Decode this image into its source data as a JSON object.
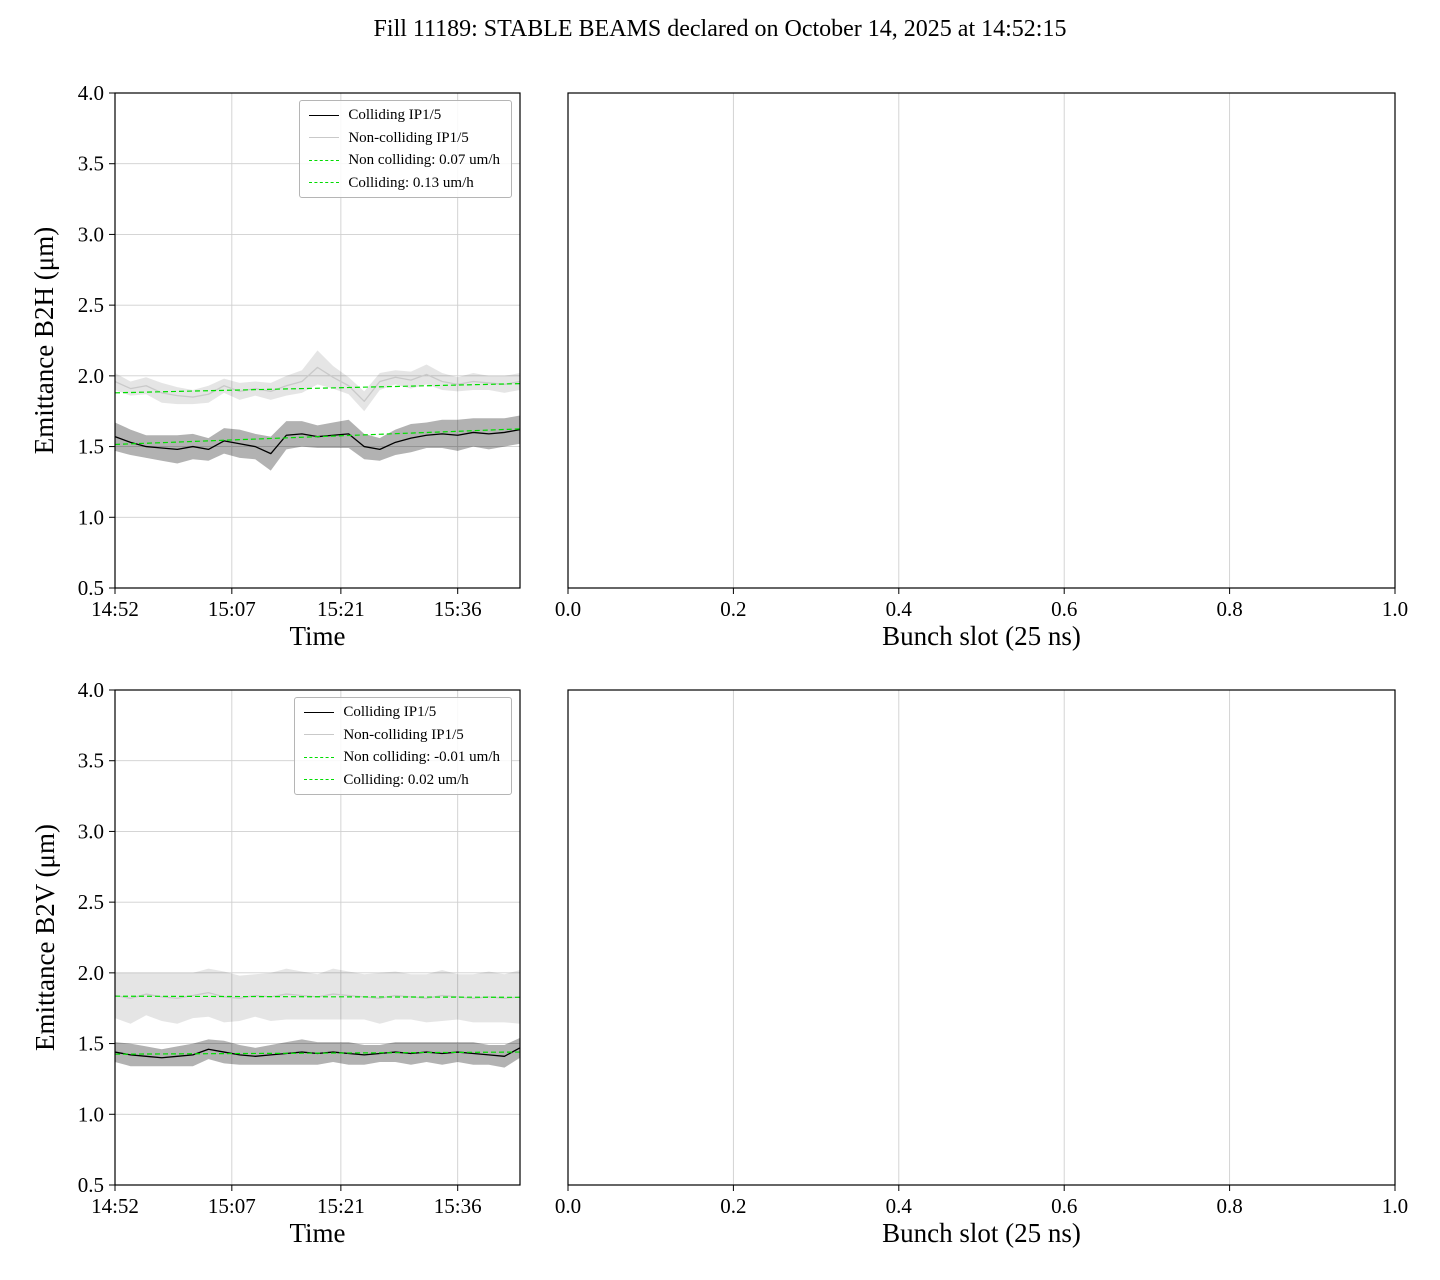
{
  "title": "Fill 11189: STABLE BEAMS declared on October 14, 2025 at 14:52:15",
  "chart_data": [
    {
      "id": "emittance-b2h",
      "type": "line",
      "xlabel": "Time",
      "ylabel": "Emittance B2H (μm)",
      "ylim": [
        0.5,
        4.0
      ],
      "x_domain": [
        0,
        52
      ],
      "grid": true,
      "legend_position": "upper right",
      "yticks": {
        "labels": [
          "0.5",
          "1.0",
          "1.5",
          "2.0",
          "2.5",
          "3.0",
          "3.5",
          "4.0"
        ],
        "values": [
          0.5,
          1.0,
          1.5,
          2.0,
          2.5,
          3.0,
          3.5,
          4.0
        ]
      },
      "xticks": {
        "labels": [
          "14:52",
          "15:07",
          "15:21",
          "15:36"
        ],
        "values": [
          0,
          15,
          29,
          44
        ]
      },
      "x": [
        0,
        2,
        4,
        6,
        8,
        10,
        12,
        14,
        16,
        18,
        20,
        22,
        24,
        26,
        28,
        30,
        32,
        34,
        36,
        38,
        40,
        42,
        44,
        46,
        48,
        50,
        52
      ],
      "series": [
        {
          "label": "Colliding IP1/5",
          "color": "#000000",
          "style": "solid",
          "band_color": "rgba(0,0,0,0.30)",
          "values": [
            1.57,
            1.53,
            1.5,
            1.49,
            1.48,
            1.5,
            1.48,
            1.54,
            1.52,
            1.5,
            1.45,
            1.58,
            1.59,
            1.57,
            1.58,
            1.59,
            1.5,
            1.48,
            1.53,
            1.56,
            1.58,
            1.59,
            1.58,
            1.6,
            1.59,
            1.6,
            1.62
          ],
          "band": [
            0.1,
            0.09,
            0.08,
            0.09,
            0.1,
            0.09,
            0.08,
            0.09,
            0.1,
            0.09,
            0.12,
            0.1,
            0.09,
            0.08,
            0.09,
            0.1,
            0.09,
            0.08,
            0.09,
            0.1,
            0.09,
            0.1,
            0.11,
            0.1,
            0.11,
            0.1,
            0.1
          ]
        },
        {
          "label": "Non-colliding IP1/5",
          "color": "#c9c9c9",
          "style": "solid",
          "band_color": "rgba(0,0,0,0.10)",
          "values": [
            1.96,
            1.91,
            1.93,
            1.88,
            1.86,
            1.85,
            1.87,
            1.93,
            1.89,
            1.91,
            1.89,
            1.93,
            1.96,
            2.06,
            1.99,
            1.93,
            1.82,
            1.96,
            1.99,
            1.97,
            2.01,
            1.96,
            1.94,
            1.96,
            1.95,
            1.94,
            1.96
          ],
          "band": [
            0.06,
            0.05,
            0.06,
            0.07,
            0.06,
            0.05,
            0.06,
            0.05,
            0.06,
            0.05,
            0.06,
            0.07,
            0.08,
            0.12,
            0.08,
            0.06,
            0.07,
            0.06,
            0.05,
            0.06,
            0.07,
            0.06,
            0.05,
            0.06,
            0.05,
            0.06,
            0.06
          ]
        },
        {
          "label": "Non colliding: 0.07 um/h",
          "color": "#00dd00",
          "style": "dashed",
          "trend_endpoints": [
            1.88,
            1.945
          ]
        },
        {
          "label": "Colliding: 0.13 um/h",
          "color": "#00dd00",
          "style": "dashed",
          "trend_endpoints": [
            1.515,
            1.625
          ]
        }
      ]
    },
    {
      "id": "bunch-slot-top",
      "type": "line",
      "xlabel": "Bunch slot (25 ns)",
      "x_domain": [
        0,
        1
      ],
      "grid": true,
      "xticks": {
        "labels": [
          "0.0",
          "0.2",
          "0.4",
          "0.6",
          "0.8",
          "1.0"
        ],
        "values": [
          0,
          0.2,
          0.4,
          0.6,
          0.8,
          1.0
        ]
      },
      "series": []
    },
    {
      "id": "emittance-b2v",
      "type": "line",
      "xlabel": "Time",
      "ylabel": "Emittance B2V (μm)",
      "ylim": [
        0.5,
        4.0
      ],
      "x_domain": [
        0,
        52
      ],
      "grid": true,
      "legend_position": "upper right",
      "yticks": {
        "labels": [
          "0.5",
          "1.0",
          "1.5",
          "2.0",
          "2.5",
          "3.0",
          "3.5",
          "4.0"
        ],
        "values": [
          0.5,
          1.0,
          1.5,
          2.0,
          2.5,
          3.0,
          3.5,
          4.0
        ]
      },
      "xticks": {
        "labels": [
          "14:52",
          "15:07",
          "15:21",
          "15:36"
        ],
        "values": [
          0,
          15,
          29,
          44
        ]
      },
      "x": [
        0,
        2,
        4,
        6,
        8,
        10,
        12,
        14,
        16,
        18,
        20,
        22,
        24,
        26,
        28,
        30,
        32,
        34,
        36,
        38,
        40,
        42,
        44,
        46,
        48,
        50,
        52
      ],
      "series": [
        {
          "label": "Colliding IP1/5",
          "color": "#000000",
          "style": "solid",
          "band_color": "rgba(0,0,0,0.30)",
          "values": [
            1.44,
            1.42,
            1.41,
            1.4,
            1.41,
            1.42,
            1.46,
            1.44,
            1.42,
            1.41,
            1.42,
            1.43,
            1.44,
            1.43,
            1.44,
            1.43,
            1.42,
            1.43,
            1.44,
            1.43,
            1.44,
            1.43,
            1.44,
            1.43,
            1.42,
            1.41,
            1.47
          ],
          "band": [
            0.07,
            0.08,
            0.07,
            0.06,
            0.07,
            0.08,
            0.07,
            0.08,
            0.07,
            0.06,
            0.07,
            0.08,
            0.09,
            0.08,
            0.07,
            0.08,
            0.07,
            0.06,
            0.07,
            0.08,
            0.07,
            0.08,
            0.07,
            0.08,
            0.07,
            0.08,
            0.07
          ]
        },
        {
          "label": "Non-colliding IP1/5",
          "color": "#c9c9c9",
          "style": "solid",
          "band_color": "rgba(0,0,0,0.10)",
          "values": [
            1.84,
            1.82,
            1.85,
            1.83,
            1.82,
            1.84,
            1.86,
            1.83,
            1.82,
            1.84,
            1.83,
            1.85,
            1.84,
            1.83,
            1.85,
            1.84,
            1.83,
            1.82,
            1.84,
            1.83,
            1.82,
            1.84,
            1.83,
            1.82,
            1.83,
            1.82,
            1.83
          ],
          "band": [
            0.16,
            0.18,
            0.15,
            0.17,
            0.18,
            0.16,
            0.17,
            0.18,
            0.16,
            0.15,
            0.17,
            0.18,
            0.17,
            0.16,
            0.18,
            0.17,
            0.16,
            0.18,
            0.17,
            0.16,
            0.17,
            0.18,
            0.16,
            0.17,
            0.18,
            0.17,
            0.19
          ]
        },
        {
          "label": "Non colliding: -0.01 um/h",
          "color": "#00dd00",
          "style": "dashed",
          "trend_endpoints": [
            1.835,
            1.827
          ]
        },
        {
          "label": "Colliding: 0.02 um/h",
          "color": "#00dd00",
          "style": "dashed",
          "trend_endpoints": [
            1.425,
            1.44
          ]
        }
      ]
    },
    {
      "id": "bunch-slot-bottom",
      "type": "line",
      "xlabel": "Bunch slot (25 ns)",
      "x_domain": [
        0,
        1
      ],
      "grid": true,
      "xticks": {
        "labels": [
          "0.0",
          "0.2",
          "0.4",
          "0.6",
          "0.8",
          "1.0"
        ],
        "values": [
          0,
          0.2,
          0.4,
          0.6,
          0.8,
          1.0
        ]
      },
      "series": []
    }
  ]
}
